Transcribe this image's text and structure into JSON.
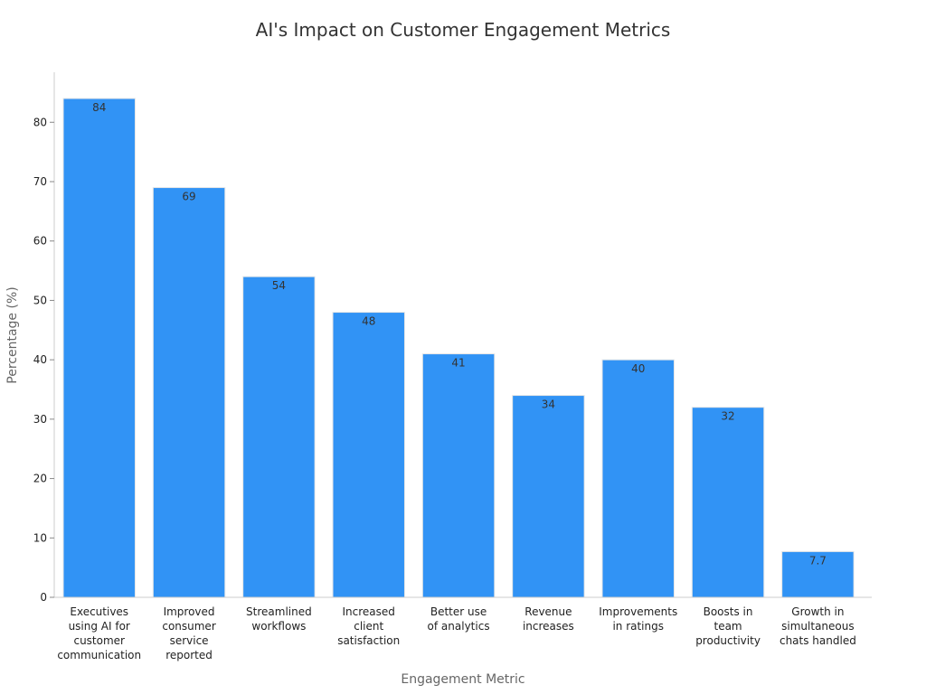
{
  "chart_data": {
    "type": "bar",
    "title": "AI's Impact on Customer Engagement Metrics",
    "xlabel": "Engagement Metric",
    "ylabel": "Percentage (%)",
    "ylim": [
      0,
      84
    ],
    "yticks": [
      0,
      10,
      20,
      30,
      40,
      50,
      60,
      70,
      80
    ],
    "grid": false,
    "bar_color": "#3193f5",
    "categories": [
      [
        "Executives",
        "using AI for",
        "customer",
        "communication"
      ],
      [
        "Improved",
        "consumer",
        "service",
        "reported"
      ],
      [
        "Streamlined",
        "workflows"
      ],
      [
        "Increased",
        "client",
        "satisfaction"
      ],
      [
        "Better use",
        "of analytics"
      ],
      [
        "Revenue",
        "increases"
      ],
      [
        "Improvements",
        "in ratings"
      ],
      [
        "Boosts in",
        "team",
        "productivity"
      ],
      [
        "Growth in",
        "simultaneous",
        "chats handled"
      ]
    ],
    "values": [
      84,
      69,
      54,
      48,
      41,
      34,
      40,
      32,
      7.7
    ]
  }
}
